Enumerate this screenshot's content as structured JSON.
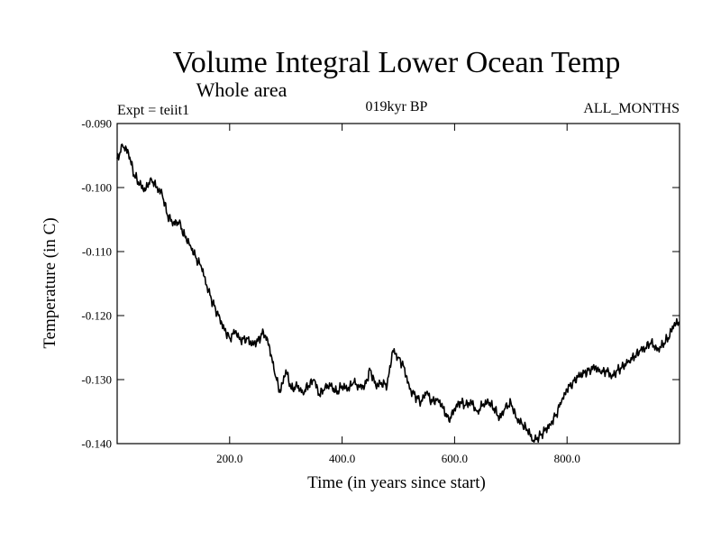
{
  "chart_data": {
    "type": "line",
    "title": "Volume Integral Lower Ocean Temp",
    "subtitle": "Whole area",
    "header_left": "Expt = teiit1",
    "header_center": "019kyr BP",
    "header_right": "ALL_MONTHS",
    "xlabel": "Time (in years since start)",
    "ylabel": "Temperature (in C)",
    "xlim": [
      0,
      1000
    ],
    "ylim": [
      -0.14,
      -0.09
    ],
    "xticks": [
      200,
      400,
      600,
      800
    ],
    "xtick_labels": [
      "200.0",
      "400.0",
      "600.0",
      "800.0"
    ],
    "yticks": [
      -0.09,
      -0.1,
      -0.11,
      -0.12,
      -0.13,
      -0.14
    ],
    "ytick_labels": [
      "-0.090",
      "-0.100",
      "-0.110",
      "-0.120",
      "-0.130",
      "-0.140"
    ],
    "grid": false,
    "line_color": "#000000",
    "series": [
      {
        "x": [
          0,
          10,
          20,
          30,
          40,
          50,
          60,
          70,
          80,
          90,
          100,
          110,
          120,
          130,
          140,
          150,
          160,
          170,
          180,
          190,
          200,
          210,
          220,
          230,
          240,
          250,
          260,
          270,
          280,
          290,
          300,
          310,
          320,
          330,
          340,
          350,
          360,
          370,
          380,
          390,
          400,
          410,
          420,
          430,
          440,
          450,
          460,
          470,
          480,
          490,
          500,
          510,
          520,
          530,
          540,
          550,
          560,
          570,
          580,
          590,
          600,
          610,
          620,
          630,
          640,
          650,
          660,
          670,
          680,
          690,
          700,
          710,
          720,
          730,
          740,
          750,
          760,
          770,
          780,
          790,
          800,
          810,
          820,
          830,
          840,
          850,
          860,
          870,
          880,
          890,
          900,
          910,
          920,
          930,
          940,
          950,
          960,
          970,
          980,
          990,
          1000
        ],
        "values": [
          -0.0955,
          -0.0935,
          -0.0945,
          -0.098,
          -0.0995,
          -0.1005,
          -0.0985,
          -0.1,
          -0.101,
          -0.1045,
          -0.1055,
          -0.1055,
          -0.1075,
          -0.109,
          -0.111,
          -0.1125,
          -0.1155,
          -0.118,
          -0.12,
          -0.122,
          -0.1235,
          -0.1225,
          -0.124,
          -0.1235,
          -0.1245,
          -0.124,
          -0.1225,
          -0.1245,
          -0.129,
          -0.132,
          -0.1285,
          -0.1315,
          -0.131,
          -0.132,
          -0.131,
          -0.13,
          -0.1325,
          -0.131,
          -0.131,
          -0.132,
          -0.131,
          -0.1315,
          -0.1305,
          -0.131,
          -0.131,
          -0.1285,
          -0.131,
          -0.1305,
          -0.131,
          -0.1255,
          -0.1265,
          -0.128,
          -0.1315,
          -0.1325,
          -0.1335,
          -0.132,
          -0.1335,
          -0.133,
          -0.1345,
          -0.1365,
          -0.1345,
          -0.1335,
          -0.134,
          -0.1335,
          -0.135,
          -0.134,
          -0.1335,
          -0.1345,
          -0.136,
          -0.1345,
          -0.1335,
          -0.136,
          -0.137,
          -0.138,
          -0.1395,
          -0.139,
          -0.138,
          -0.137,
          -0.1355,
          -0.1335,
          -0.1315,
          -0.1305,
          -0.1295,
          -0.129,
          -0.1285,
          -0.128,
          -0.129,
          -0.1285,
          -0.1295,
          -0.1285,
          -0.128,
          -0.127,
          -0.1265,
          -0.1255,
          -0.125,
          -0.124,
          -0.1255,
          -0.1245,
          -0.1235,
          -0.1215,
          -0.121
        ]
      }
    ]
  }
}
